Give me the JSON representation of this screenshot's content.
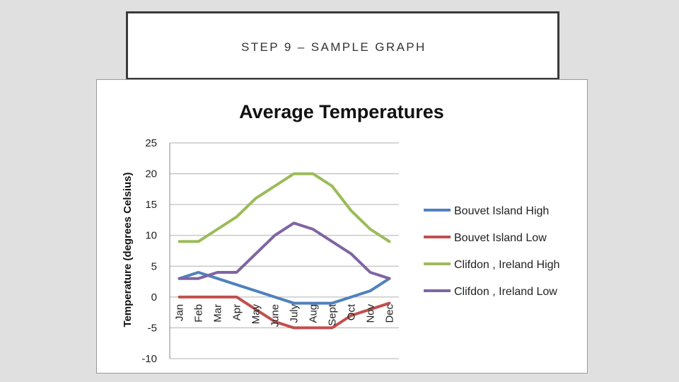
{
  "slide": {
    "title": "STEP 9 – SAMPLE GRAPH"
  },
  "chart_data": {
    "type": "line",
    "title": "Average Temperatures",
    "xlabel": "",
    "ylabel": "Temperature (degrees Celsius)",
    "ylim": [
      -10,
      25
    ],
    "yticks": [
      25,
      20,
      15,
      10,
      5,
      0,
      -5,
      -10
    ],
    "grid": true,
    "legend_position": "right",
    "categories": [
      "Jan",
      "Feb",
      "Mar",
      "Apr",
      "May",
      "June",
      "July",
      "Aug",
      "Sept",
      "Oct",
      "Nov",
      "Dec"
    ],
    "series": [
      {
        "name": "Bouvet Island High",
        "color": "#4F81BD",
        "values": [
          3,
          4,
          3,
          2,
          1,
          0,
          -1,
          -1,
          -1,
          0,
          1,
          3
        ]
      },
      {
        "name": "Bouvet Island Low",
        "color": "#C0504D",
        "values": [
          0,
          0,
          0,
          0,
          -2,
          -4,
          -5,
          -5,
          -5,
          -3,
          -2,
          -1
        ]
      },
      {
        "name": "Clifdon , Ireland High",
        "color": "#9BBB59",
        "values": [
          9,
          9,
          11,
          13,
          16,
          18,
          20,
          20,
          18,
          14,
          11,
          9
        ]
      },
      {
        "name": "Clifdon , Ireland Low",
        "color": "#8064A2",
        "values": [
          3,
          3,
          4,
          4,
          7,
          10,
          12,
          11,
          9,
          7,
          4,
          3
        ]
      }
    ]
  }
}
